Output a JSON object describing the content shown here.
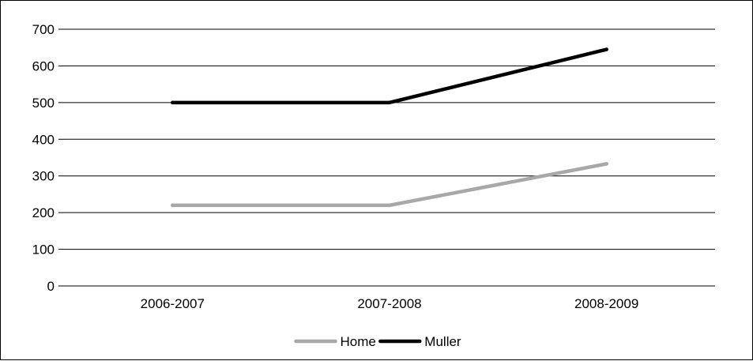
{
  "chart_data": {
    "type": "line",
    "title": "",
    "xlabel": "",
    "ylabel": "",
    "categories": [
      "2006-2007",
      "2007-2008",
      "2008-2009"
    ],
    "series": [
      {
        "name": "Home",
        "values": [
          220,
          220,
          333
        ],
        "color": "#a8a8a8"
      },
      {
        "name": "Muller",
        "values": [
          500,
          500,
          645
        ],
        "color": "#000000"
      }
    ],
    "ylim": [
      0,
      700
    ],
    "yticks": [
      "0",
      "100",
      "200",
      "300",
      "400",
      "500",
      "600",
      "700"
    ],
    "grid": true,
    "legend_position": "bottom"
  }
}
